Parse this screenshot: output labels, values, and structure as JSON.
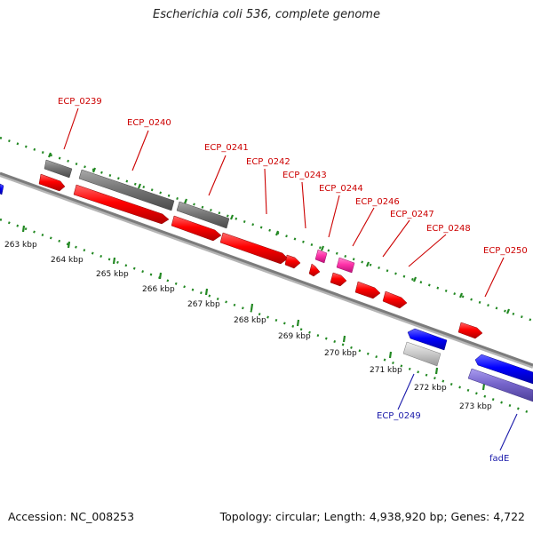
{
  "title": "Escherichia coli 536, complete genome",
  "footer": {
    "accession": "Accession: NC_008253",
    "summary": "Topology: circular; Length: 4,938,920 bp; Genes: 4,722"
  },
  "ticks": [
    {
      "label": "263 kbp"
    },
    {
      "label": "264 kbp"
    },
    {
      "label": "265 kbp"
    },
    {
      "label": "266 kbp"
    },
    {
      "label": "267 kbp"
    },
    {
      "label": "268 kbp"
    },
    {
      "label": "269 kbp"
    },
    {
      "label": "270 kbp"
    },
    {
      "label": "271 kbp"
    },
    {
      "label": "272 kbp"
    },
    {
      "label": "273 kbp"
    }
  ],
  "gene_labels": {
    "ECP_0239": "ECP_0239",
    "ECP_0240": "ECP_0240",
    "ECP_0241": "ECP_0241",
    "ECP_0242": "ECP_0242",
    "ECP_0243": "ECP_0243",
    "ECP_0244": "ECP_0244",
    "ECP_0246": "ECP_0246",
    "ECP_0247": "ECP_0247",
    "ECP_0248": "ECP_0248",
    "ECP_0250": "ECP_0250",
    "ECP_0249": "ECP_0249",
    "fadE": "fadE"
  },
  "colors": {
    "cds_forward": "#ff0000",
    "gene_grey": "#777777",
    "misc_pink": "#ff33aa",
    "cds_reverse": "#0000ff",
    "pseudo_grey": "#cccccc",
    "fadE_purple": "#7766cc",
    "label_red": "#cc0000",
    "label_blue": "#1a1aaa",
    "tick_green": "#228822",
    "backbone": "#8c8c8c"
  }
}
